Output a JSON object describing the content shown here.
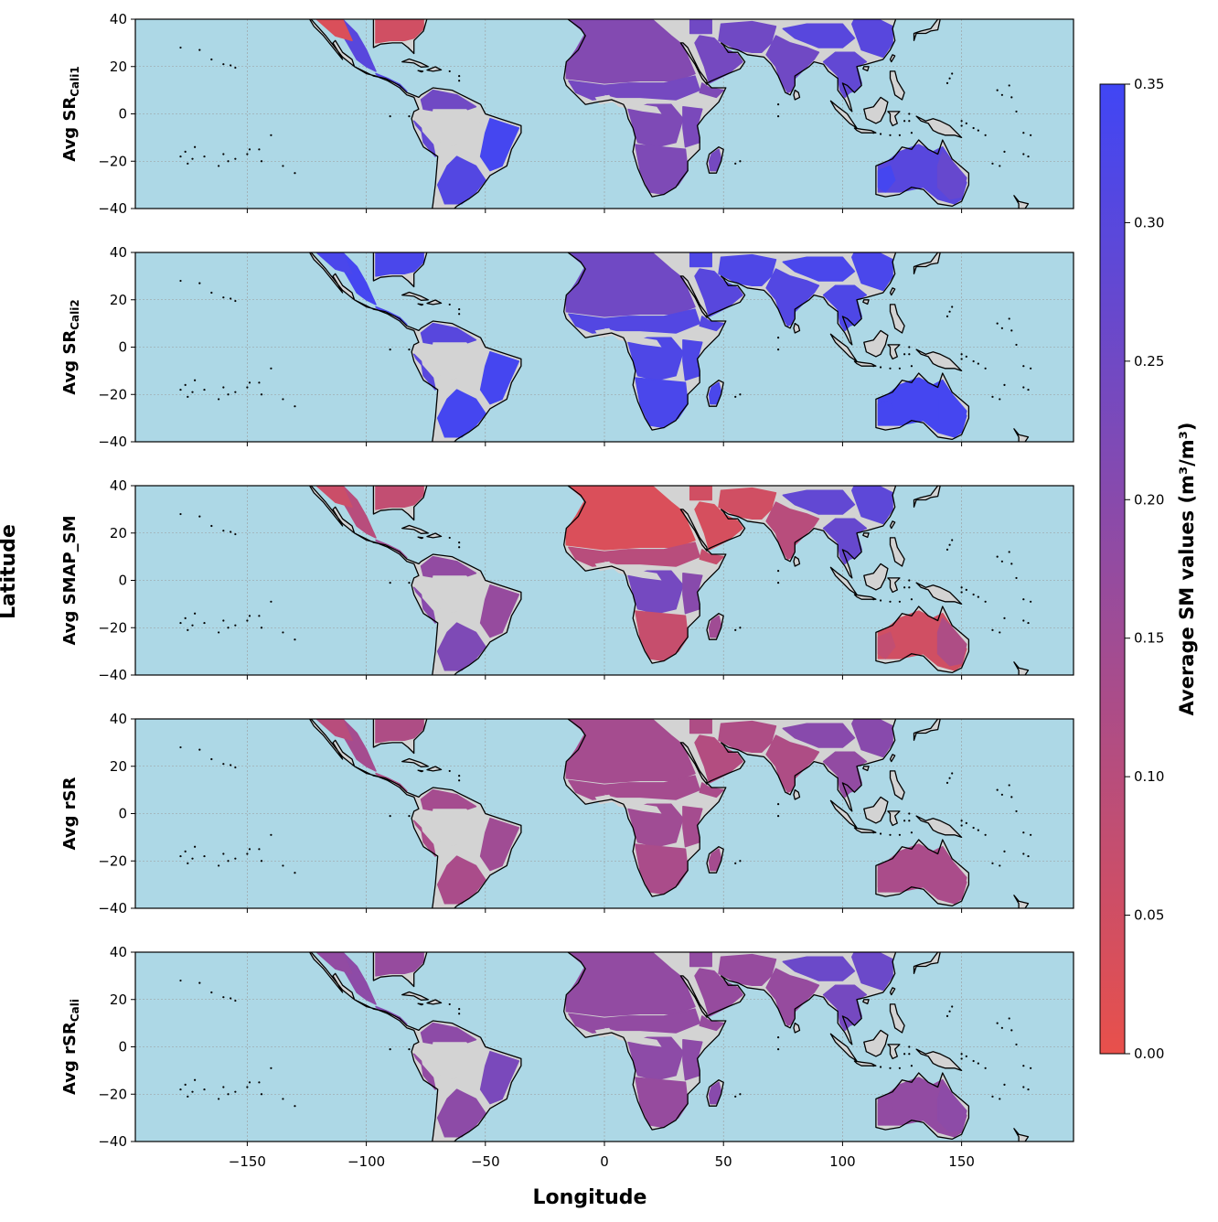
{
  "figure": {
    "xlabel": "Longitude",
    "ylabel": "Latitude"
  },
  "panels": [
    {
      "label_main": "Avg SR",
      "label_sub": "Cali1",
      "profile": "cali1"
    },
    {
      "label_main": "Avg SR",
      "label_sub": "Cali2",
      "profile": "cali2"
    },
    {
      "label_main": "Avg SMAP_SM",
      "label_sub": "",
      "profile": "smap"
    },
    {
      "label_main": "Avg rSR",
      "label_sub": "",
      "profile": "rsr"
    },
    {
      "label_main": "Avg rSR",
      "label_sub": "Cali",
      "profile": "rsrcali"
    }
  ],
  "axes": {
    "x_ticks": [
      -150,
      -100,
      -50,
      0,
      50,
      100,
      150
    ],
    "x_tick_labels": [
      "−150",
      "−100",
      "−50",
      "0",
      "50",
      "100",
      "150"
    ],
    "y_ticks": [
      40,
      20,
      0,
      -20,
      -40
    ],
    "y_tick_labels": [
      "40",
      "20",
      "0",
      "−20",
      "−40"
    ],
    "xlim": [
      -197,
      197
    ],
    "ylim": [
      -40,
      40
    ],
    "grid": true
  },
  "colorbar": {
    "title": "Average SM values (m³/m³)",
    "min": 0.0,
    "max": 0.35,
    "ticks": [
      0.0,
      0.05,
      0.1,
      0.15,
      0.2,
      0.25,
      0.3,
      0.35
    ],
    "tick_labels": [
      "0.00",
      "0.05",
      "0.10",
      "0.15",
      "0.20",
      "0.25",
      "0.30",
      "0.35"
    ],
    "color_low": "#e8504b",
    "color_high": "#4046f5"
  },
  "colors": {
    "ocean": "#add8e6",
    "nodata_land": "#d3d3d3",
    "coastline": "#000000"
  },
  "chart_data": {
    "type": "heatmap",
    "title": "",
    "xlabel": "Longitude",
    "ylabel": "Latitude",
    "xlim": [
      -197,
      197
    ],
    "ylim": [
      -40,
      40
    ],
    "value_range": [
      0.0,
      0.35
    ],
    "colorbar_label": "Average SM values (m³/m³)",
    "panels": [
      "Avg SRCali1",
      "Avg SRCali2",
      "Avg SMAP_SM",
      "Avg rSR",
      "Avg rSRCali"
    ],
    "regions": [
      {
        "name": "Mexico",
        "cali1": 0.27,
        "cali2": 0.32,
        "smap": 0.08,
        "rsr": 0.14,
        "rsrcali": 0.2
      },
      {
        "name": "United States (south)",
        "cali1": 0.04,
        "cali2": 0.33,
        "smap": 0.06,
        "rsr": 0.1,
        "rsrcali": 0.17
      },
      {
        "name": "Central America",
        "cali1": 0.3,
        "cali2": 0.33,
        "smap": 0.16,
        "rsr": 0.13,
        "rsrcali": 0.2
      },
      {
        "name": "Northern South America",
        "cali1": 0.27,
        "cali2": 0.3,
        "smap": 0.18,
        "rsr": 0.14,
        "rsrcali": 0.19
      },
      {
        "name": "Eastern Brazil",
        "cali1": 0.33,
        "cali2": 0.34,
        "smap": 0.17,
        "rsr": 0.14,
        "rsrcali": 0.22
      },
      {
        "name": "Southern South America",
        "cali1": 0.3,
        "cali2": 0.34,
        "smap": 0.22,
        "rsr": 0.13,
        "rsrcali": 0.19
      },
      {
        "name": "Sahara",
        "cali1": 0.21,
        "cali2": 0.25,
        "smap": 0.03,
        "rsr": 0.14,
        "rsrcali": 0.18
      },
      {
        "name": "Sahel",
        "cali1": 0.24,
        "cali2": 0.31,
        "smap": 0.1,
        "rsr": 0.14,
        "rsrcali": 0.18
      },
      {
        "name": "Central Africa",
        "cali1": 0.22,
        "cali2": 0.32,
        "smap": 0.24,
        "rsr": 0.15,
        "rsrcali": 0.19
      },
      {
        "name": "Southern Africa",
        "cali1": 0.22,
        "cali2": 0.33,
        "smap": 0.07,
        "rsr": 0.13,
        "rsrcali": 0.17
      },
      {
        "name": "Madagascar",
        "cali1": 0.24,
        "cali2": 0.33,
        "smap": 0.15,
        "rsr": 0.14,
        "rsrcali": 0.2
      },
      {
        "name": "Arabian Peninsula",
        "cali1": 0.24,
        "cali2": 0.3,
        "smap": 0.04,
        "rsr": 0.11,
        "rsrcali": 0.17
      },
      {
        "name": "South Asia",
        "cali1": 0.25,
        "cali2": 0.3,
        "smap": 0.1,
        "rsr": 0.12,
        "rsrcali": 0.17
      },
      {
        "name": "Southeast Asia",
        "cali1": 0.28,
        "cali2": 0.32,
        "smap": 0.27,
        "rsr": 0.2,
        "rsrcali": 0.25
      },
      {
        "name": "Australia",
        "cali1": 0.3,
        "cali2": 0.34,
        "smap": 0.05,
        "rsr": 0.13,
        "rsrcali": 0.18
      }
    ]
  }
}
